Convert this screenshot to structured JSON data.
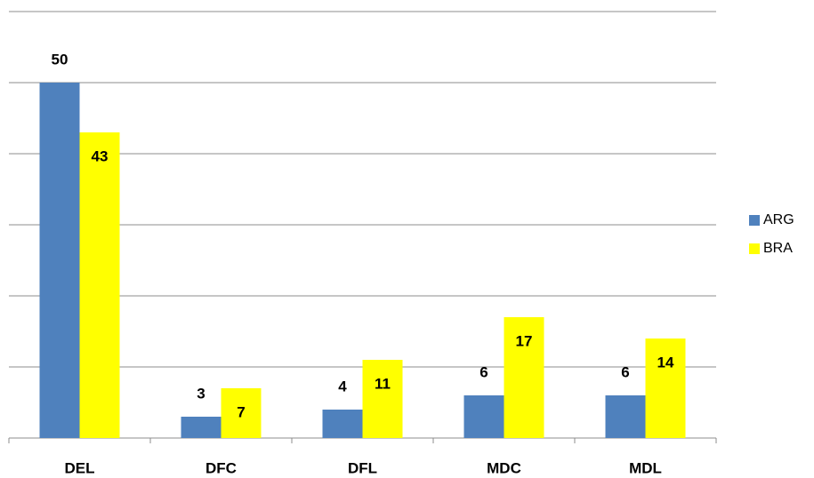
{
  "chart_data": {
    "type": "bar",
    "categories": [
      "DEL",
      "DFC",
      "DFL",
      "MDC",
      "MDL"
    ],
    "series": [
      {
        "name": "ARG",
        "color": "#4f81bd",
        "values": [
          50,
          3,
          4,
          6,
          6
        ]
      },
      {
        "name": "BRA",
        "color": "#ffff00",
        "values": [
          43,
          7,
          11,
          17,
          14
        ]
      }
    ],
    "ylim": [
      0,
      60
    ],
    "yticks": [
      0,
      10,
      20,
      30,
      40,
      50,
      60
    ],
    "grid": true,
    "legend": "right"
  }
}
